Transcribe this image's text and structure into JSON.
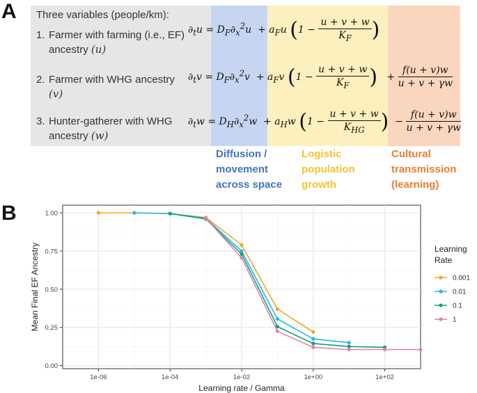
{
  "panel_a": {
    "letter": "A",
    "intro": "Three variables (people/km):",
    "variables": [
      {
        "num": "1.",
        "line1": "Farmer with farming (i.e., EF)",
        "line2": "ancestry",
        "symbol": "(u)"
      },
      {
        "num": "2.",
        "line1": "Farmer with WHG ancestry",
        "line2": "",
        "symbol": "(v)"
      },
      {
        "num": "3.",
        "line1": "Hunter-gatherer with WHG",
        "line2": "ancestry",
        "symbol": "(w)"
      }
    ],
    "equations": {
      "e1_lhs": "∂ₜu = D_F∂²ₓu",
      "e1_log": "+ a_F u",
      "e2_lhs": "∂ₜv = D_F∂²ₓv",
      "e2_log": "+ a_F v",
      "e3_lhs": "∂ₜw = D_H∂²ₓw",
      "e3_log": "+ a_H w"
    },
    "labels": {
      "diffusion": [
        "Diffusion /",
        "movement",
        "across space"
      ],
      "logistic": [
        "Logistic",
        "population",
        "growth"
      ],
      "cultural": [
        "Cultural",
        "transmission",
        "(learning)"
      ]
    },
    "colors": {
      "diffusion": "#4472c4",
      "logistic": "#f4c430",
      "cultural": "#ed7d31"
    }
  },
  "panel_b": {
    "letter": "B"
  },
  "chart_data": {
    "type": "line",
    "xlabel": "Learning rate / Gamma",
    "ylabel": "Mean Final EF Ancestry",
    "x_scale": "log10",
    "x_ticks": [
      1e-06,
      0.0001,
      0.01,
      1,
      100
    ],
    "x_tick_labels": [
      "1e-06",
      "1e-04",
      "1e-02",
      "1e+00",
      "1e+02"
    ],
    "y_ticks": [
      0,
      0.25,
      0.5,
      0.75,
      1.0
    ],
    "y_tick_labels": [
      "0.00",
      "0.25",
      "0.50",
      "0.75",
      "1.00"
    ],
    "xlim": [
      1e-07,
      1000.0
    ],
    "ylim": [
      -0.02,
      1.05
    ],
    "grid": true,
    "legend_title": "Learning Rate",
    "legend_position": "right",
    "series": [
      {
        "name": "0.001",
        "color": "#f5a623",
        "x": [
          1e-06,
          1e-05,
          0.0001,
          0.001,
          0.01,
          0.1,
          1
        ],
        "y": [
          1.0,
          1.0,
          0.995,
          0.97,
          0.79,
          0.37,
          0.22
        ]
      },
      {
        "name": "0.01",
        "color": "#29b6e6",
        "x": [
          1e-05,
          0.0001,
          0.001,
          0.01,
          0.1,
          1,
          10
        ],
        "y": [
          1.0,
          0.995,
          0.965,
          0.75,
          0.305,
          0.175,
          0.15
        ]
      },
      {
        "name": "0.1",
        "color": "#0aa37f",
        "x": [
          0.0001,
          0.001,
          0.01,
          0.1,
          1,
          10,
          100
        ],
        "y": [
          0.995,
          0.96,
          0.73,
          0.255,
          0.145,
          0.125,
          0.12
        ]
      },
      {
        "name": "1",
        "color": "#e77fad",
        "x": [
          0.001,
          0.01,
          0.1,
          1,
          10,
          100,
          1000
        ],
        "y": [
          0.965,
          0.705,
          0.225,
          0.12,
          0.105,
          0.105,
          0.105
        ]
      }
    ]
  }
}
